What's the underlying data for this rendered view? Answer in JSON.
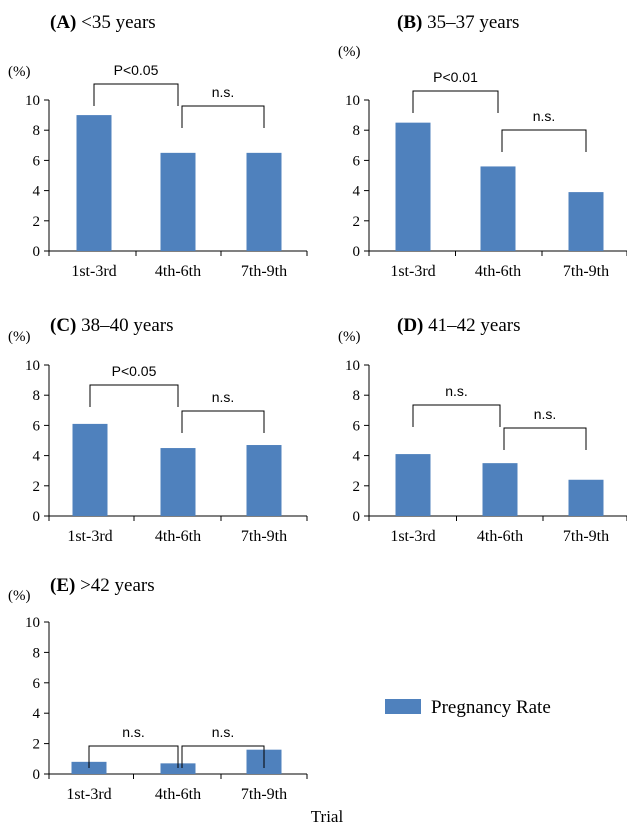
{
  "chart_data": [
    {
      "type": "bar",
      "panel": "(A)",
      "title": "<35 years",
      "ylabel": "(%)",
      "ylim": [
        0,
        10
      ],
      "yticks": [
        0,
        2,
        4,
        6,
        8,
        10
      ],
      "categories": [
        "1st-3rd",
        "4th-6th",
        "7th-9th"
      ],
      "series": [
        {
          "name": "Pregnancy Rate",
          "values": [
            9.0,
            6.5,
            6.5
          ]
        }
      ],
      "comparisons": [
        {
          "from": 0,
          "to": 1,
          "label": "P<0.05"
        },
        {
          "from": 1,
          "to": 2,
          "label": "n.s."
        }
      ]
    },
    {
      "type": "bar",
      "panel": "(B)",
      "title": "35–37 years",
      "ylabel": "(%)",
      "ylim": [
        0,
        10
      ],
      "yticks": [
        0,
        2,
        4,
        6,
        8,
        10
      ],
      "categories": [
        "1st-3rd",
        "4th-6th",
        "7th-9th"
      ],
      "series": [
        {
          "name": "Pregnancy Rate",
          "values": [
            8.5,
            5.6,
            3.9
          ]
        }
      ],
      "comparisons": [
        {
          "from": 0,
          "to": 1,
          "label": "P<0.01"
        },
        {
          "from": 1,
          "to": 2,
          "label": "n.s."
        }
      ]
    },
    {
      "type": "bar",
      "panel": "(C)",
      "title": "38–40 years",
      "ylabel": "(%)",
      "ylim": [
        0,
        10
      ],
      "yticks": [
        0,
        2,
        4,
        6,
        8,
        10
      ],
      "categories": [
        "1st-3rd",
        "4th-6th",
        "7th-9th"
      ],
      "series": [
        {
          "name": "Pregnancy Rate",
          "values": [
            6.1,
            4.5,
            4.7
          ]
        }
      ],
      "comparisons": [
        {
          "from": 0,
          "to": 1,
          "label": "P<0.05"
        },
        {
          "from": 1,
          "to": 2,
          "label": "n.s."
        }
      ]
    },
    {
      "type": "bar",
      "panel": "(D)",
      "title": "41–42 years",
      "ylabel": "(%)",
      "ylim": [
        0,
        10
      ],
      "yticks": [
        0,
        2,
        4,
        6,
        8,
        10
      ],
      "categories": [
        "1st-3rd",
        "4th-6th",
        "7th-9th"
      ],
      "series": [
        {
          "name": "Pregnancy Rate",
          "values": [
            4.1,
            3.5,
            2.4
          ]
        }
      ],
      "comparisons": [
        {
          "from": 0,
          "to": 1,
          "label": "n.s."
        },
        {
          "from": 1,
          "to": 2,
          "label": "n.s."
        }
      ]
    },
    {
      "type": "bar",
      "panel": "(E)",
      "title": ">42 years",
      "ylabel": "(%)",
      "xlabel": "Trial",
      "ylim": [
        0,
        10
      ],
      "yticks": [
        0,
        2,
        4,
        6,
        8,
        10
      ],
      "categories": [
        "1st-3rd",
        "4th-6th",
        "7th-9th"
      ],
      "series": [
        {
          "name": "Pregnancy Rate",
          "values": [
            0.8,
            0.7,
            1.6
          ]
        }
      ],
      "comparisons": [
        {
          "from": 0,
          "to": 1,
          "label": "n.s."
        },
        {
          "from": 1,
          "to": 2,
          "label": "n.s."
        }
      ]
    }
  ],
  "legend": {
    "label": "Pregnancy Rate",
    "color": "#4f81bd"
  },
  "colors": {
    "bar": "#4f81bd",
    "axis": "#000000",
    "bracket": "#000000"
  }
}
